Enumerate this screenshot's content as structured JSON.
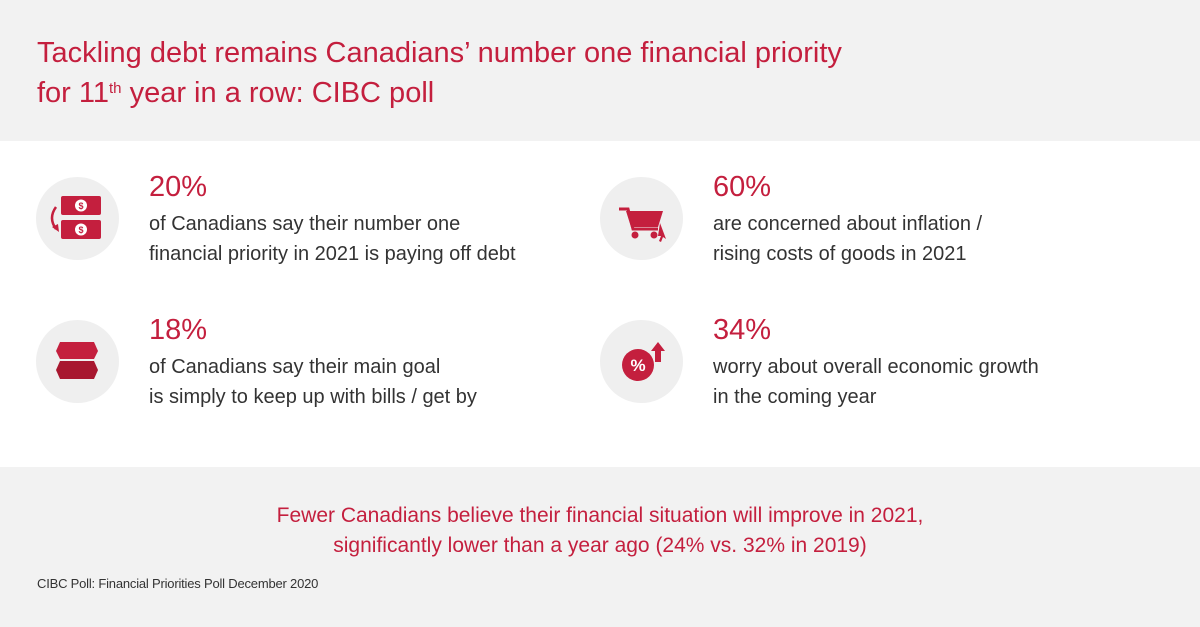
{
  "header": {
    "title_line1": "Tackling debt remains Canadians’ number one financial priority",
    "title_line2_pre": "for 11",
    "title_line2_sup": "th",
    "title_line2_post": " year in a row: CIBC poll"
  },
  "stats": [
    {
      "icon": "money-cycle-icon",
      "value": "20%",
      "desc_line1": "of Canadians say their number one",
      "desc_line2": "financial priority in 2021 is paying off debt"
    },
    {
      "icon": "shopping-cart-icon",
      "value": "60%",
      "desc_line1": "are concerned about inflation /",
      "desc_line2": "rising costs of goods in 2021"
    },
    {
      "icon": "bills-icon",
      "value": "18%",
      "desc_line1": "of Canadians say their main goal",
      "desc_line2": "is simply to keep up with bills / get by"
    },
    {
      "icon": "percent-growth-icon",
      "value": "34%",
      "desc_line1": "worry about overall economic growth",
      "desc_line2": "in the coming year"
    }
  ],
  "footer": {
    "callout_line1": "Fewer Canadians believe their financial situation will improve in 2021,",
    "callout_line2": "significantly lower than a year ago (24% vs. 32% in 2019)",
    "source": "CIBC Poll: Financial Priorities Poll December 2020"
  },
  "colors": {
    "accent": "#c41f3e",
    "panel": "#f2f2f2",
    "text": "#333333"
  }
}
